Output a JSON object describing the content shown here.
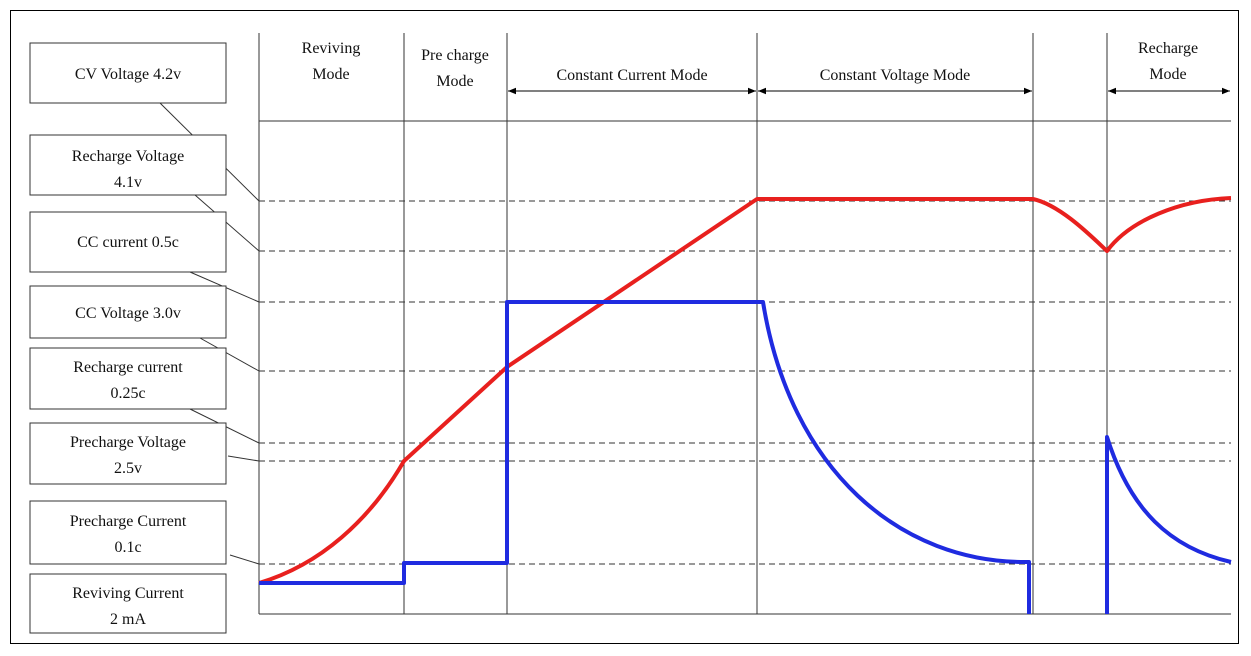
{
  "header_modes": [
    {
      "id": "reviving",
      "lines": [
        "Reviving",
        "Mode"
      ],
      "arrow": false
    },
    {
      "id": "precharge",
      "lines": [
        "Pre charge",
        "Mode"
      ],
      "arrow": false
    },
    {
      "id": "cc",
      "lines": [
        "Constant Current Mode"
      ],
      "arrow": true
    },
    {
      "id": "cv",
      "lines": [
        "Constant Voltage Mode"
      ],
      "arrow": true
    },
    {
      "id": "gap",
      "lines": [],
      "arrow": false
    },
    {
      "id": "recharge",
      "lines": [
        "Recharge",
        "Mode"
      ],
      "arrow": true
    }
  ],
  "labels": [
    {
      "id": "cv-voltage",
      "lines": [
        "CV Voltage 4.2v"
      ]
    },
    {
      "id": "recharge-voltage",
      "lines": [
        "Recharge Voltage",
        "4.1v"
      ]
    },
    {
      "id": "cc-current",
      "lines": [
        "CC  current 0.5c"
      ]
    },
    {
      "id": "cc-voltage",
      "lines": [
        "CC Voltage 3.0v"
      ]
    },
    {
      "id": "recharge-current",
      "lines": [
        "Recharge  current",
        "0.25c"
      ]
    },
    {
      "id": "precharge-voltage",
      "lines": [
        "Precharge Voltage",
        "2.5v"
      ]
    },
    {
      "id": "precharge-current",
      "lines": [
        "Precharge Current",
        "0.1c"
      ]
    },
    {
      "id": "reviving-current",
      "lines": [
        "Reviving Current",
        "2 mA"
      ]
    }
  ],
  "series": [
    {
      "id": "voltage-curve",
      "color": "#e8201e"
    },
    {
      "id": "current-curve",
      "color": "#1f2be0"
    }
  ]
}
